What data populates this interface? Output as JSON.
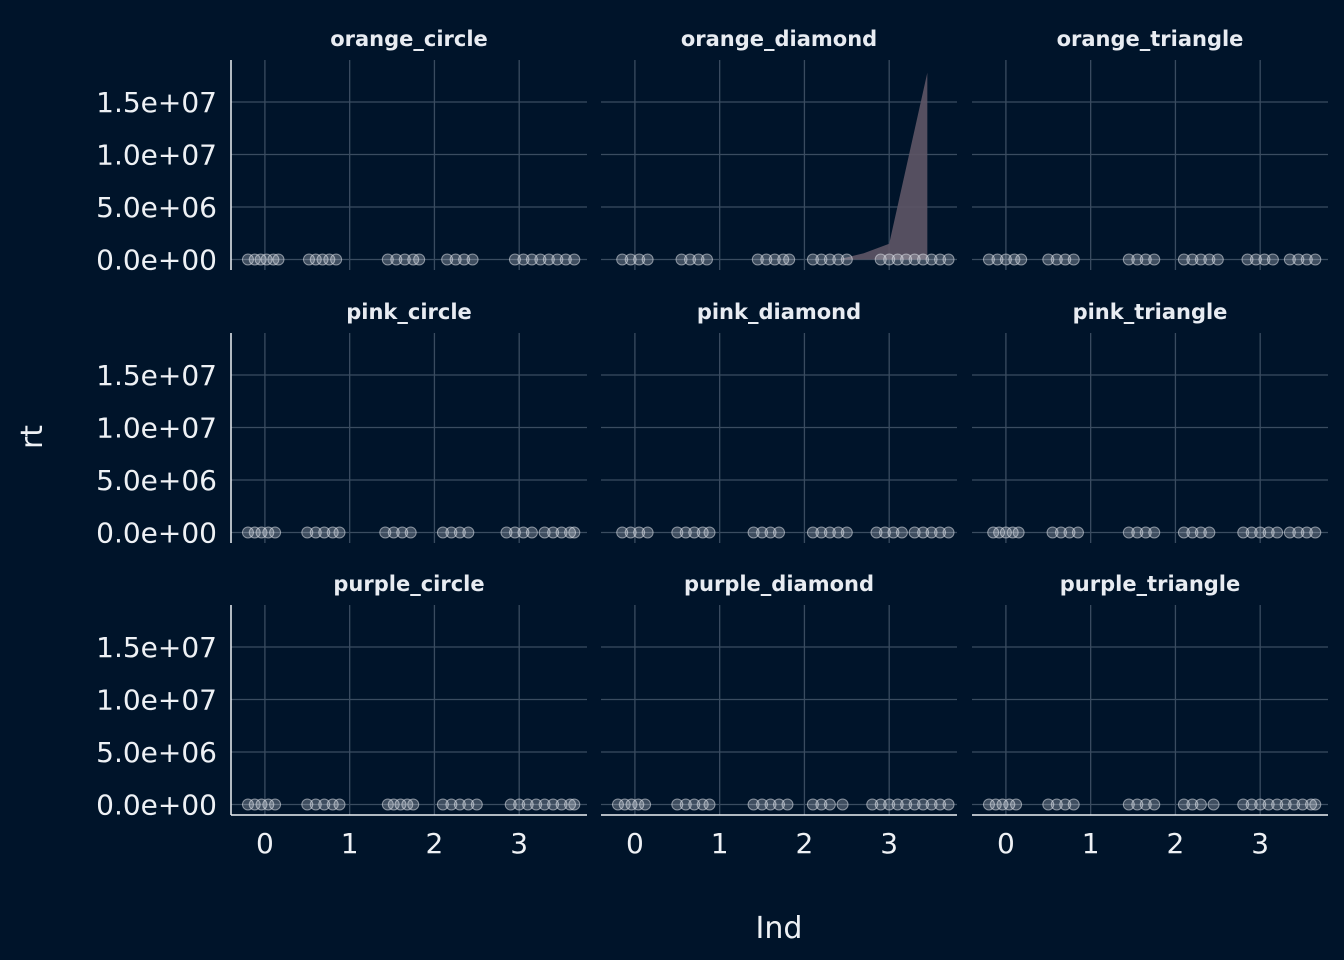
{
  "chart_data": {
    "type": "scatter",
    "facet_layout": "3x3",
    "xlabel": "Ind",
    "ylabel": "rt",
    "x_ticks": [
      0,
      1,
      2,
      3
    ],
    "xlim": [
      -0.4,
      3.8
    ],
    "y_ticks": [
      0,
      5000000,
      10000000,
      15000000
    ],
    "y_tick_labels": [
      "0.0e+00",
      "5.0e+06",
      "1.0e+07",
      "1.5e+07"
    ],
    "ylim": [
      -1000000,
      19000000
    ],
    "grid": true,
    "colors": {
      "background": "#00142a",
      "grid": "#3a4c60",
      "points": "#e0e3ea",
      "ribbon": "#5e5566",
      "text": "#eef1f5"
    },
    "panels": [
      {
        "name": "orange_circle",
        "x": [
          -0.2,
          -0.12,
          -0.05,
          0.02,
          0.1,
          0.16,
          0.52,
          0.6,
          0.68,
          0.76,
          0.84,
          1.45,
          1.55,
          1.65,
          1.75,
          1.82,
          2.15,
          2.25,
          2.35,
          2.45,
          2.95,
          3.05,
          3.15,
          3.25,
          3.35,
          3.45,
          3.55,
          3.65
        ],
        "y": [
          0,
          0,
          0,
          0,
          0,
          0,
          0,
          0,
          0,
          0,
          0,
          0,
          0,
          0,
          0,
          0,
          0,
          0,
          0,
          0,
          0,
          0,
          0,
          0,
          0,
          0,
          0,
          0
        ]
      },
      {
        "name": "orange_diamond",
        "x": [
          -0.15,
          -0.05,
          0.05,
          0.15,
          0.55,
          0.65,
          0.75,
          0.85,
          1.45,
          1.55,
          1.65,
          1.75,
          1.82,
          2.1,
          2.2,
          2.3,
          2.4,
          2.5,
          2.9,
          3.0,
          3.1,
          3.2,
          3.3,
          3.4,
          3.5,
          3.6,
          3.7
        ],
        "y": [
          0,
          0,
          0,
          0,
          0,
          0,
          0,
          0,
          0,
          0,
          0,
          0,
          0,
          0,
          0,
          0,
          0,
          0,
          0,
          0,
          0,
          0,
          0,
          0,
          0,
          0,
          0
        ],
        "ribbon": {
          "x": [
            2.4,
            2.7,
            3.0,
            3.45
          ],
          "ymin": [
            0,
            0,
            0,
            0
          ],
          "ymax": [
            0,
            600000,
            1500000,
            17800000
          ]
        }
      },
      {
        "name": "orange_triangle",
        "x": [
          -0.2,
          -0.1,
          0.0,
          0.1,
          0.18,
          0.5,
          0.6,
          0.7,
          0.8,
          1.45,
          1.55,
          1.65,
          1.75,
          2.1,
          2.2,
          2.3,
          2.4,
          2.5,
          2.85,
          2.95,
          3.05,
          3.15,
          3.35,
          3.45,
          3.55,
          3.65
        ],
        "y": [
          0,
          0,
          0,
          0,
          0,
          0,
          0,
          0,
          0,
          0,
          0,
          0,
          0,
          0,
          0,
          0,
          0,
          0,
          0,
          0,
          0,
          0,
          0,
          0,
          0,
          0
        ]
      },
      {
        "name": "pink_circle",
        "x": [
          -0.2,
          -0.12,
          -0.04,
          0.04,
          0.12,
          0.5,
          0.6,
          0.7,
          0.8,
          0.88,
          1.42,
          1.52,
          1.62,
          1.72,
          2.1,
          2.2,
          2.3,
          2.4,
          2.85,
          2.95,
          3.05,
          3.15,
          3.3,
          3.4,
          3.5,
          3.6,
          3.65
        ],
        "y": [
          0,
          0,
          0,
          0,
          0,
          0,
          0,
          0,
          0,
          0,
          0,
          0,
          0,
          0,
          0,
          0,
          0,
          0,
          0,
          0,
          0,
          0,
          0,
          0,
          0,
          0,
          0
        ]
      },
      {
        "name": "pink_diamond",
        "x": [
          -0.15,
          -0.05,
          0.05,
          0.15,
          0.5,
          0.6,
          0.7,
          0.8,
          0.88,
          1.4,
          1.5,
          1.6,
          1.7,
          2.1,
          2.2,
          2.3,
          2.4,
          2.5,
          2.85,
          2.95,
          3.05,
          3.15,
          3.3,
          3.4,
          3.5,
          3.6,
          3.7
        ],
        "y": [
          0,
          0,
          0,
          0,
          0,
          0,
          0,
          0,
          0,
          0,
          0,
          0,
          0,
          0,
          0,
          0,
          0,
          0,
          0,
          0,
          0,
          0,
          0,
          0,
          0,
          0,
          0
        ]
      },
      {
        "name": "pink_triangle",
        "x": [
          -0.15,
          -0.08,
          0.0,
          0.08,
          0.15,
          0.55,
          0.65,
          0.75,
          0.85,
          1.45,
          1.55,
          1.65,
          1.75,
          2.1,
          2.2,
          2.3,
          2.4,
          2.8,
          2.9,
          3.0,
          3.1,
          3.2,
          3.35,
          3.45,
          3.55,
          3.65
        ],
        "y": [
          0,
          0,
          0,
          0,
          0,
          0,
          0,
          0,
          0,
          0,
          0,
          0,
          0,
          0,
          0,
          0,
          0,
          0,
          0,
          0,
          0,
          0,
          0,
          0,
          0,
          0
        ]
      },
      {
        "name": "purple_circle",
        "x": [
          -0.2,
          -0.12,
          -0.04,
          0.04,
          0.12,
          0.5,
          0.6,
          0.7,
          0.8,
          0.88,
          1.45,
          1.52,
          1.6,
          1.68,
          1.75,
          2.1,
          2.2,
          2.3,
          2.4,
          2.5,
          2.9,
          3.0,
          3.1,
          3.2,
          3.3,
          3.4,
          3.5,
          3.6,
          3.65
        ],
        "y": [
          0,
          0,
          0,
          0,
          0,
          0,
          0,
          0,
          0,
          0,
          0,
          0,
          0,
          0,
          0,
          0,
          0,
          0,
          0,
          0,
          0,
          0,
          0,
          0,
          0,
          0,
          0,
          0,
          0
        ]
      },
      {
        "name": "purple_diamond",
        "x": [
          -0.2,
          -0.12,
          -0.04,
          0.04,
          0.12,
          0.5,
          0.6,
          0.7,
          0.8,
          0.88,
          1.4,
          1.5,
          1.6,
          1.7,
          1.8,
          2.1,
          2.2,
          2.3,
          2.45,
          2.8,
          2.9,
          3.0,
          3.1,
          3.2,
          3.3,
          3.4,
          3.5,
          3.6,
          3.7
        ],
        "y": [
          0,
          0,
          0,
          0,
          0,
          0,
          0,
          0,
          0,
          0,
          0,
          0,
          0,
          0,
          0,
          0,
          0,
          0,
          0,
          0,
          0,
          0,
          0,
          0,
          0,
          0,
          0,
          0,
          0
        ]
      },
      {
        "name": "purple_triangle",
        "x": [
          -0.2,
          -0.12,
          -0.04,
          0.04,
          0.12,
          0.5,
          0.6,
          0.7,
          0.8,
          1.45,
          1.55,
          1.65,
          1.75,
          2.1,
          2.2,
          2.3,
          2.45,
          2.8,
          2.9,
          3.0,
          3.1,
          3.2,
          3.3,
          3.4,
          3.5,
          3.6,
          3.65
        ],
        "y": [
          0,
          0,
          0,
          0,
          0,
          0,
          0,
          0,
          0,
          0,
          0,
          0,
          0,
          0,
          0,
          0,
          0,
          0,
          0,
          0,
          0,
          0,
          0,
          0,
          0,
          0,
          0
        ]
      }
    ]
  }
}
